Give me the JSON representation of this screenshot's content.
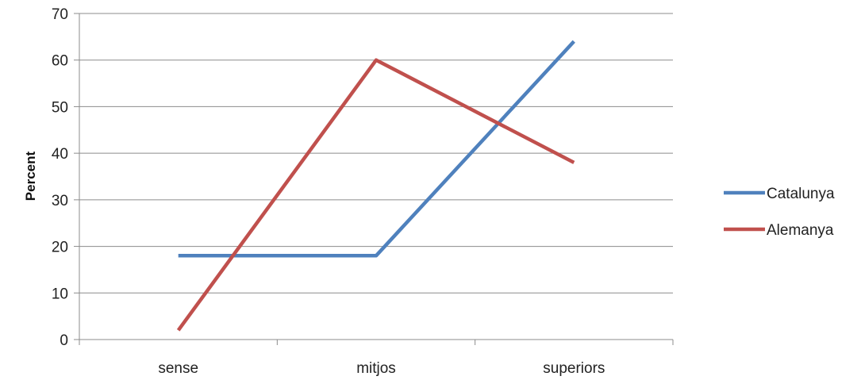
{
  "chart_data": {
    "type": "line",
    "title": "",
    "xlabel": "",
    "ylabel": "Percent",
    "categories": [
      "sense",
      "mitjos",
      "superiors"
    ],
    "ylim": [
      0,
      70
    ],
    "yticks": [
      0,
      10,
      20,
      30,
      40,
      50,
      60,
      70
    ],
    "grid": true,
    "legend": "right",
    "series": [
      {
        "name": "Catalunya",
        "values": [
          18,
          18,
          64
        ],
        "color": "#4f81bd"
      },
      {
        "name": "Alemanya",
        "values": [
          2,
          60,
          38
        ],
        "color": "#c0504d"
      }
    ]
  }
}
